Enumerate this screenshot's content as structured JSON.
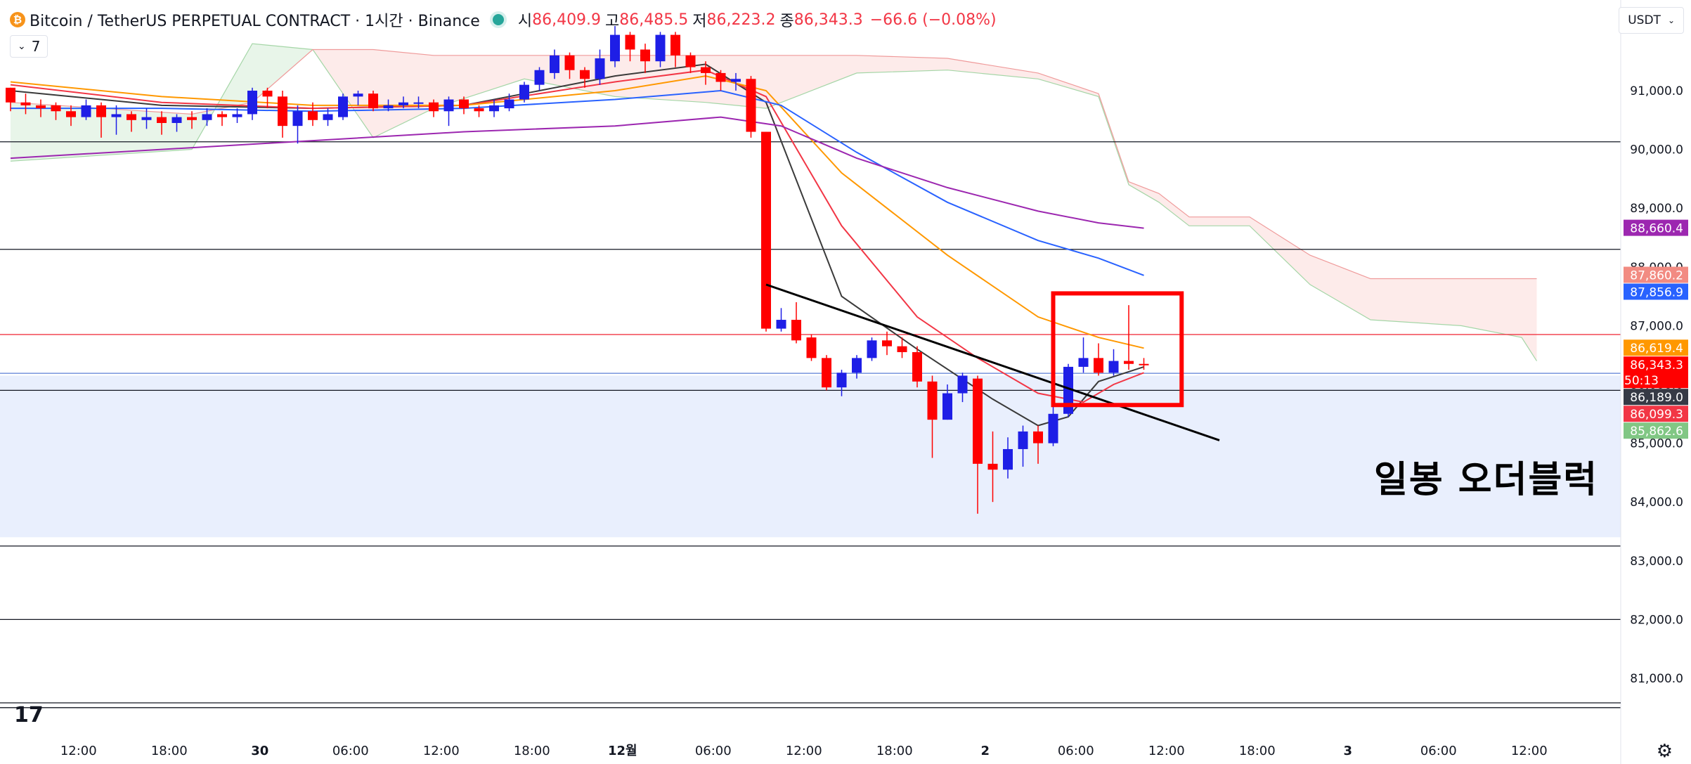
{
  "header": {
    "coin_icon_glyph": "₿",
    "title": "Bitcoin / TetherUS PERPETUAL CONTRACT · 1시간 · Binance",
    "open_label": "시",
    "open_value": "86,409.9",
    "high_label": "고",
    "high_value": "86,485.5",
    "low_label": "저",
    "low_value": "86,223.2",
    "close_label": "종",
    "close_value": "86,343.3",
    "change_value": "−66.6 (−0.08%)",
    "indicator_count": "7",
    "currency": "USDT"
  },
  "annotation_text": "일봉 오더블럭",
  "logo_text": "17",
  "colors": {
    "up": "#1e1ee6",
    "down": "#ff0000",
    "ema_fast": "#3a3a3a",
    "ema_red": "#f23645",
    "ema_orange": "#ff9800",
    "ema_blue": "#2962ff",
    "ema_purple": "#9c27b0",
    "cloud_green": "#e8f5e9",
    "cloud_red": "#fde8e6",
    "order_block": "#e9effd"
  },
  "chart_data": {
    "type": "candlestick",
    "timeframe": "1H",
    "ylim": [
      80400,
      92500
    ],
    "y_ticks": [
      91000,
      90000,
      89000,
      88000,
      87000,
      86000,
      85000,
      84000,
      83000,
      82000,
      81000
    ],
    "y_tick_labels": [
      "91,000.0",
      "90,000.0",
      "89,000.0",
      "88,000.0",
      "87,000.0",
      "86,000.0",
      "85,000.0",
      "84,000.0",
      "83,000.0",
      "82,000.0",
      "81,000.0"
    ],
    "x_ticks": [
      {
        "label": "12:00",
        "bar": 4.5
      },
      {
        "label": "18:00",
        "bar": 10.5
      },
      {
        "label": "30",
        "bar": 16.5
      },
      {
        "label": "06:00",
        "bar": 22.5
      },
      {
        "label": "12:00",
        "bar": 28.5
      },
      {
        "label": "18:00",
        "bar": 34.5
      },
      {
        "label": "12월",
        "bar": 40.5
      },
      {
        "label": "06:00",
        "bar": 46.5
      },
      {
        "label": "12:00",
        "bar": 52.5
      },
      {
        "label": "18:00",
        "bar": 58.5
      },
      {
        "label": "2",
        "bar": 64.5
      },
      {
        "label": "06:00",
        "bar": 70.5
      },
      {
        "label": "12:00",
        "bar": 76.5
      },
      {
        "label": "18:00",
        "bar": 82.5
      },
      {
        "label": "3",
        "bar": 88.5
      },
      {
        "label": "06:00",
        "bar": 94.5
      },
      {
        "label": "12:00",
        "bar": 100.5
      }
    ],
    "candles": [
      [
        91050,
        90800,
        91050,
        90650
      ],
      [
        90800,
        90750,
        90950,
        90600
      ],
      [
        90750,
        90700,
        90850,
        90550
      ],
      [
        90750,
        90650,
        90800,
        90500
      ],
      [
        90650,
        90550,
        90750,
        90400
      ],
      [
        90550,
        90750,
        90850,
        90500
      ],
      [
        90750,
        90550,
        90800,
        90200
      ],
      [
        90550,
        90600,
        90750,
        90250
      ],
      [
        90600,
        90500,
        90650,
        90300
      ],
      [
        90500,
        90550,
        90700,
        90350
      ],
      [
        90550,
        90450,
        90650,
        90250
      ],
      [
        90450,
        90550,
        90600,
        90300
      ],
      [
        90550,
        90500,
        90650,
        90350
      ],
      [
        90500,
        90600,
        90700,
        90400
      ],
      [
        90600,
        90550,
        90650,
        90400
      ],
      [
        90550,
        90600,
        90700,
        90450
      ],
      [
        90600,
        91000,
        91050,
        90500
      ],
      [
        91000,
        90900,
        91050,
        90700
      ],
      [
        90900,
        90400,
        91000,
        90200
      ],
      [
        90400,
        90650,
        90750,
        90100
      ],
      [
        90650,
        90500,
        90800,
        90400
      ],
      [
        90500,
        90600,
        90700,
        90400
      ],
      [
        90550,
        90900,
        90950,
        90500
      ],
      [
        90900,
        90950,
        91000,
        90750
      ],
      [
        90950,
        90700,
        91000,
        90650
      ],
      [
        90700,
        90750,
        90850,
        90650
      ],
      [
        90750,
        90800,
        90900,
        90700
      ],
      [
        90800,
        90800,
        90900,
        90700
      ],
      [
        90800,
        90650,
        90850,
        90550
      ],
      [
        90650,
        90850,
        90900,
        90400
      ],
      [
        90850,
        90700,
        90900,
        90600
      ],
      [
        90700,
        90650,
        90750,
        90550
      ],
      [
        90650,
        90750,
        90850,
        90550
      ],
      [
        90700,
        90850,
        90950,
        90650
      ],
      [
        90850,
        91100,
        91150,
        90800
      ],
      [
        91100,
        91350,
        91400,
        91000
      ],
      [
        91300,
        91600,
        91700,
        91200
      ],
      [
        91600,
        91350,
        91650,
        91200
      ],
      [
        91350,
        91200,
        91400,
        91050
      ],
      [
        91200,
        91550,
        91700,
        91100
      ],
      [
        91500,
        91950,
        92100,
        91400
      ],
      [
        91950,
        91700,
        92000,
        91500
      ],
      [
        91700,
        91500,
        91800,
        91300
      ],
      [
        91500,
        91950,
        92000,
        91400
      ],
      [
        91950,
        91600,
        92000,
        91400
      ],
      [
        91600,
        91400,
        91650,
        91300
      ],
      [
        91400,
        91300,
        91500,
        91100
      ],
      [
        91300,
        91150,
        91350,
        91000
      ],
      [
        91150,
        91200,
        91300,
        91000
      ],
      [
        91200,
        90300,
        91250,
        90200
      ],
      [
        90300,
        86950,
        90300,
        86900
      ],
      [
        86950,
        87100,
        87300,
        86900
      ],
      [
        87100,
        86750,
        87400,
        86700
      ],
      [
        86800,
        86450,
        86850,
        86400
      ],
      [
        86450,
        85950,
        86500,
        85900
      ],
      [
        85950,
        86200,
        86250,
        85800
      ],
      [
        86200,
        86450,
        86500,
        86100
      ],
      [
        86450,
        86750,
        86800,
        86400
      ],
      [
        86750,
        86650,
        86900,
        86500
      ],
      [
        86650,
        86550,
        86800,
        86450
      ],
      [
        86550,
        86050,
        86650,
        85950
      ],
      [
        86050,
        85400,
        86150,
        84750
      ],
      [
        85400,
        85850,
        86000,
        85400
      ],
      [
        85850,
        86150,
        86200,
        85700
      ],
      [
        86100,
        84650,
        86150,
        83800
      ],
      [
        84650,
        84550,
        85200,
        84000
      ],
      [
        84550,
        84900,
        85100,
        84400
      ],
      [
        84900,
        85200,
        85300,
        84600
      ],
      [
        85200,
        85000,
        85300,
        84650
      ],
      [
        85000,
        85500,
        85800,
        84950
      ],
      [
        85500,
        86300,
        86350,
        85450
      ],
      [
        86300,
        86450,
        86800,
        86200
      ],
      [
        86450,
        86200,
        86700,
        86150
      ],
      [
        86200,
        86400,
        86600,
        86150
      ],
      [
        86400,
        86350,
        87350,
        86250
      ],
      [
        86350,
        86343,
        86450,
        86250
      ]
    ],
    "ema_series": [
      {
        "color": "#3a3a3a",
        "points": [
          [
            0,
            91000
          ],
          [
            10,
            90750
          ],
          [
            20,
            90700
          ],
          [
            30,
            90750
          ],
          [
            40,
            91250
          ],
          [
            46,
            91450
          ],
          [
            50,
            90800
          ],
          [
            55,
            87500
          ],
          [
            60,
            86600
          ],
          [
            65,
            85750
          ],
          [
            68,
            85300
          ],
          [
            70,
            85450
          ],
          [
            72,
            86050
          ],
          [
            75,
            86300
          ]
        ]
      },
      {
        "color": "#f23645",
        "points": [
          [
            0,
            91100
          ],
          [
            10,
            90800
          ],
          [
            20,
            90700
          ],
          [
            30,
            90750
          ],
          [
            40,
            91150
          ],
          [
            46,
            91350
          ],
          [
            50,
            90900
          ],
          [
            55,
            88700
          ],
          [
            60,
            87150
          ],
          [
            64,
            86450
          ],
          [
            68,
            85850
          ],
          [
            71,
            85700
          ],
          [
            73,
            86000
          ],
          [
            75,
            86200
          ]
        ]
      },
      {
        "color": "#ff9800",
        "points": [
          [
            0,
            91150
          ],
          [
            10,
            90900
          ],
          [
            20,
            90750
          ],
          [
            30,
            90750
          ],
          [
            40,
            91000
          ],
          [
            46,
            91250
          ],
          [
            50,
            91000
          ],
          [
            55,
            89600
          ],
          [
            62,
            88200
          ],
          [
            68,
            87150
          ],
          [
            72,
            86800
          ],
          [
            75,
            86619
          ]
        ]
      },
      {
        "color": "#2962ff",
        "points": [
          [
            0,
            90700
          ],
          [
            10,
            90700
          ],
          [
            20,
            90650
          ],
          [
            30,
            90700
          ],
          [
            40,
            90850
          ],
          [
            47,
            91000
          ],
          [
            51,
            90750
          ],
          [
            56,
            89950
          ],
          [
            62,
            89100
          ],
          [
            68,
            88450
          ],
          [
            72,
            88150
          ],
          [
            75,
            87857
          ]
        ]
      },
      {
        "color": "#9c27b0",
        "points": [
          [
            0,
            89850
          ],
          [
            10,
            90000
          ],
          [
            20,
            90150
          ],
          [
            30,
            90300
          ],
          [
            40,
            90400
          ],
          [
            47,
            90550
          ],
          [
            51,
            90400
          ],
          [
            56,
            89850
          ],
          [
            62,
            89350
          ],
          [
            68,
            88950
          ],
          [
            72,
            88750
          ],
          [
            75,
            88660
          ]
        ]
      }
    ],
    "cloud": {
      "span_a": [
        [
          0,
          89800
        ],
        [
          12,
          90000
        ],
        [
          16,
          91800
        ],
        [
          20,
          91700
        ],
        [
          24,
          90200
        ],
        [
          28,
          90700
        ],
        [
          34,
          91200
        ],
        [
          40,
          90900
        ],
        [
          46,
          90800
        ],
        [
          50,
          90700
        ],
        [
          56,
          91300
        ],
        [
          62,
          91350
        ],
        [
          68,
          91200
        ],
        [
          72,
          90900
        ],
        [
          74,
          89400
        ],
        [
          76,
          89100
        ],
        [
          78,
          88700
        ],
        [
          82,
          88700
        ],
        [
          86,
          87700
        ],
        [
          90,
          87100
        ],
        [
          96,
          87000
        ],
        [
          100,
          86800
        ],
        [
          101,
          86400
        ]
      ],
      "span_b": [
        [
          0,
          90800
        ],
        [
          12,
          90600
        ],
        [
          16,
          90800
        ],
        [
          20,
          91700
        ],
        [
          24,
          91700
        ],
        [
          28,
          91600
        ],
        [
          34,
          91600
        ],
        [
          40,
          91600
        ],
        [
          46,
          91600
        ],
        [
          50,
          91600
        ],
        [
          56,
          91600
        ],
        [
          62,
          91550
        ],
        [
          68,
          91300
        ],
        [
          72,
          90950
        ],
        [
          74,
          89450
        ],
        [
          76,
          89250
        ],
        [
          78,
          88850
        ],
        [
          82,
          88850
        ],
        [
          86,
          88200
        ],
        [
          90,
          87800
        ],
        [
          96,
          87800
        ],
        [
          101,
          87800
        ]
      ]
    },
    "trendline": {
      "from": [
        50,
        87700
      ],
      "to": [
        80,
        85050
      ]
    },
    "highlight_box": {
      "from": [
        69,
        87550
      ],
      "to": [
        77.5,
        85650
      ]
    },
    "order_block_zone": [
      83400,
      86150
    ],
    "horizontal_lines": [
      {
        "value": 90130,
        "color": "#131722"
      },
      {
        "value": 88300,
        "color": "#131722"
      },
      {
        "value": 86850,
        "color": "#f23645"
      },
      {
        "value": 86190,
        "color": "#5b7fd6"
      },
      {
        "value": 85900,
        "color": "#131722"
      },
      {
        "value": 83250,
        "color": "#131722"
      },
      {
        "value": 82000,
        "color": "#131722"
      },
      {
        "value": 80500,
        "color": "#131722"
      }
    ],
    "price_badges": [
      {
        "value": 88660.4,
        "label": "88,660.4",
        "color": "#9c27b0"
      },
      {
        "value": 87860.2,
        "label": "87,860.2",
        "color": "#f28b82"
      },
      {
        "value": 87856.9,
        "label": "87,856.9",
        "color": "#2962ff"
      },
      {
        "value": 86619.4,
        "label": "86,619.4",
        "color": "#ff9800"
      },
      {
        "value": 86343.3,
        "label": "86,343.3",
        "color": "#ff0000",
        "sub": "50:13"
      },
      {
        "value": 86189.0,
        "label": "86,189.0",
        "color": "#363a45"
      },
      {
        "value": 86099.3,
        "label": "86,099.3",
        "color": "#f23645"
      },
      {
        "value": 85862.6,
        "label": "85,862.6",
        "color": "#81c784"
      }
    ]
  }
}
